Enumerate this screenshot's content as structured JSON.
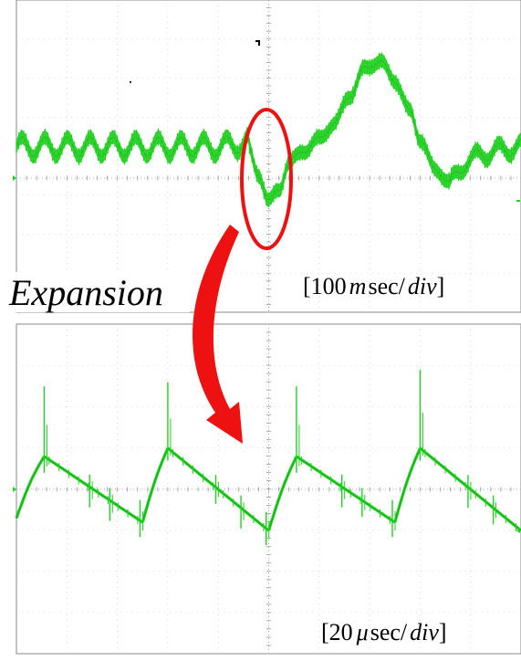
{
  "colors": {
    "trace": "#22d022",
    "trace_dark": "#11a011",
    "highlight": "#ee1111",
    "grid": "#bdbdbd",
    "frame": "#8a8a8a"
  },
  "annotation": {
    "expansion": "Expansion"
  },
  "chart_data": [
    {
      "type": "line",
      "title": "",
      "xlabel": "",
      "ylabel": "",
      "grid": true,
      "grid_divisions": [
        10,
        8
      ],
      "scale_label": {
        "open": "[",
        "number": "100",
        "unit_prefix": "m",
        "unit": "sec/",
        "per": "div",
        "close": "]"
      },
      "x_unit": "div",
      "y_unit": "div",
      "xlim": [
        0,
        10
      ],
      "ylim": [
        -4,
        4
      ],
      "series": [
        {
          "ripple_period_div": 0.45,
          "ripple_amplitude_div": 0.25,
          "band_width_div": 0.35,
          "baseline_level_div": 0.8,
          "x": [
            0,
            0.5,
            1.0,
            2.0,
            3.0,
            4.0,
            4.55,
            4.8,
            5.0,
            5.2,
            5.4,
            5.7,
            6.0,
            6.3,
            6.6,
            6.9,
            7.2,
            7.5,
            7.8,
            8.0,
            8.3,
            8.6,
            9.0,
            9.5,
            10.0
          ],
          "y": [
            0.8,
            0.8,
            0.8,
            0.8,
            0.8,
            0.8,
            0.9,
            0.1,
            -0.6,
            -0.3,
            0.4,
            0.7,
            1.0,
            1.4,
            2.1,
            2.8,
            3.0,
            2.5,
            1.7,
            1.0,
            0.2,
            -0.1,
            0.5,
            0.7,
            0.8
          ]
        }
      ]
    },
    {
      "type": "line",
      "title": "",
      "xlabel": "",
      "ylabel": "",
      "grid": true,
      "grid_divisions": [
        10,
        8
      ],
      "scale_label": {
        "open": "[",
        "number": "20",
        "unit_prefix": "μ",
        "unit": "sec/",
        "per": "div",
        "close": "]"
      },
      "x_unit": "div",
      "y_unit": "div",
      "xlim": [
        0,
        10
      ],
      "ylim": [
        -4,
        4
      ],
      "series": [
        {
          "waveform": "sawtooth",
          "segments": [
            {
              "x": [
                0.0,
                0.55
              ],
              "y": [
                -0.7,
                0.8
              ]
            },
            {
              "x": [
                0.55,
                2.5
              ],
              "y": [
                0.8,
                -0.8
              ]
            },
            {
              "x": [
                2.5,
                3.0
              ],
              "y": [
                -0.8,
                1.0
              ]
            },
            {
              "x": [
                3.0,
                5.0
              ],
              "y": [
                1.0,
                -1.0
              ]
            },
            {
              "x": [
                5.0,
                5.55
              ],
              "y": [
                -1.0,
                0.8
              ]
            },
            {
              "x": [
                5.55,
                7.5
              ],
              "y": [
                0.8,
                -0.8
              ]
            },
            {
              "x": [
                7.5,
                8.0
              ],
              "y": [
                -0.8,
                1.0
              ]
            },
            {
              "x": [
                8.0,
                10.0
              ],
              "y": [
                1.0,
                -1.0
              ]
            }
          ],
          "spikes": [
            {
              "x": 0.55,
              "up": 1.7,
              "down": 0.4
            },
            {
              "x": 1.45,
              "up": 0.3,
              "down": 0.5
            },
            {
              "x": 1.85,
              "up": 0.3,
              "down": 0.5
            },
            {
              "x": 2.45,
              "up": 0.5,
              "down": 0.4
            },
            {
              "x": 3.0,
              "up": 1.6,
              "down": 0.3
            },
            {
              "x": 3.95,
              "up": 0.3,
              "down": 0.4
            },
            {
              "x": 4.45,
              "up": 0.3,
              "down": 0.5
            },
            {
              "x": 4.95,
              "up": 0.4,
              "down": 0.4
            },
            {
              "x": 5.55,
              "up": 1.7,
              "down": 0.4
            },
            {
              "x": 6.45,
              "up": 0.3,
              "down": 0.5
            },
            {
              "x": 6.85,
              "up": 0.3,
              "down": 0.4
            },
            {
              "x": 7.45,
              "up": 0.5,
              "down": 0.4
            },
            {
              "x": 8.0,
              "up": 1.9,
              "down": 0.3
            },
            {
              "x": 8.95,
              "up": 0.3,
              "down": 0.5
            },
            {
              "x": 9.45,
              "up": 0.3,
              "down": 0.4
            }
          ]
        }
      ]
    }
  ]
}
